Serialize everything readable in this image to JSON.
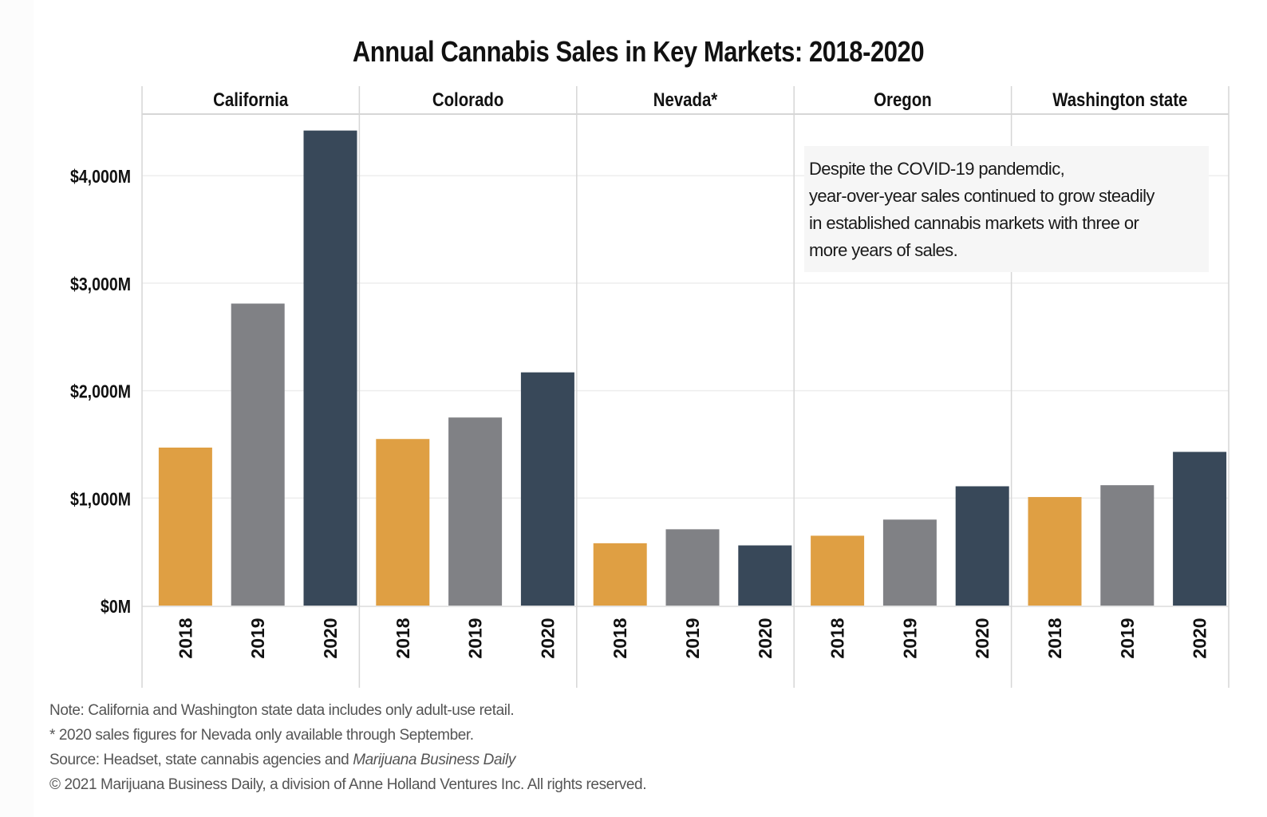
{
  "chart_data": {
    "type": "bar",
    "title": "Annual Cannabis Sales in Key Markets: 2018-2020",
    "xlabel": "",
    "ylabel": "",
    "ylim": [
      0,
      4500
    ],
    "y_ticks": [
      0,
      1000,
      2000,
      3000,
      4000
    ],
    "y_tick_labels": [
      "$0M",
      "$1,000M",
      "$2,000M",
      "$3,000M",
      "$4,000M"
    ],
    "grid": true,
    "legend": "none",
    "categories": [
      "2018",
      "2019",
      "2020"
    ],
    "colors": {
      "2018": "#df9f43",
      "2019": "#808185",
      "2020": "#384859"
    },
    "panels": [
      {
        "name": "California",
        "values": [
          1470,
          2810,
          4420
        ]
      },
      {
        "name": "Colorado",
        "values": [
          1550,
          1750,
          2170
        ]
      },
      {
        "name": "Nevada*",
        "values": [
          580,
          710,
          560
        ]
      },
      {
        "name": "Oregon",
        "values": [
          650,
          800,
          1110
        ]
      },
      {
        "name": "Washington state",
        "values": [
          1010,
          1120,
          1430
        ]
      }
    ],
    "annotations": [
      {
        "panel": "Oregon–Washington state",
        "lines": [
          "Despite the COVID-19 pandemdic,",
          "year-over-year sales continued to grow steadily",
          "in established cannabis markets with three or",
          "more years of sales."
        ]
      }
    ]
  },
  "footnotes": {
    "note": "Note: California and Washington state data includes only adult-use retail.",
    "nevada": "* 2020 sales figures for Nevada only available through September.",
    "source_prefix": "Source: Headset, state cannabis agencies and ",
    "source_italic": "Marijuana Business Daily",
    "copyright": "© 2021 Marijuana Business Daily, a division of Anne Holland Ventures Inc. All rights reserved."
  }
}
